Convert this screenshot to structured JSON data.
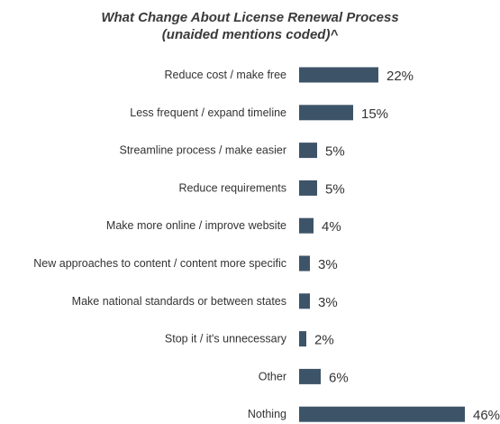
{
  "chart_data": {
    "type": "bar",
    "orientation": "horizontal",
    "title_line1": "What Change About License Renewal Process",
    "title_line2": "(unaided mentions coded)^",
    "categories": [
      "Reduce cost / make free",
      "Less frequent / expand timeline",
      "Streamline process / make easier",
      "Reduce requirements",
      "Make more online / improve website",
      "New approaches to content / content more specific",
      "Make national standards or between states",
      "Stop it / it's unnecessary",
      "Other",
      "Nothing"
    ],
    "values": [
      22,
      15,
      5,
      5,
      4,
      3,
      3,
      2,
      6,
      46
    ],
    "value_labels": [
      "22%",
      "15%",
      "5%",
      "5%",
      "4%",
      "3%",
      "3%",
      "2%",
      "6%",
      "46%"
    ],
    "unit": "%",
    "bar_color": "#3d5468",
    "grid": false,
    "legend": "none"
  }
}
